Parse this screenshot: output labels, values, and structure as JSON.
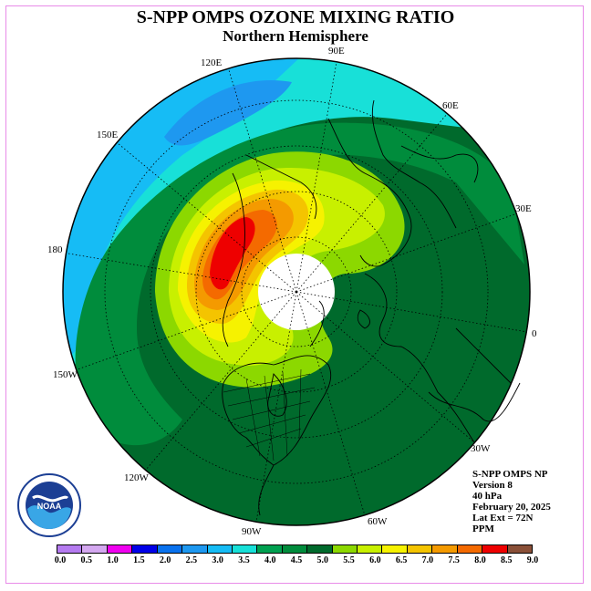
{
  "title": "S-NPP OMPS OZONE MIXING RATIO",
  "subtitle": "Northern Hemisphere",
  "longitude_labels": {
    "lon_90e": "90E",
    "lon_120e": "120E",
    "lon_60e": "60E",
    "lon_150e": "150E",
    "lon_30e": "30E",
    "lon_180": "180",
    "lon_0": "0",
    "lon_150w": "150W",
    "lon_30w": "30W",
    "lon_120w": "120W",
    "lon_60w": "60W",
    "lon_90w": "90W"
  },
  "info": {
    "product": "S-NPP OMPS NP",
    "version": "Version 8",
    "level": "40 hPa",
    "date": "February 20, 2025",
    "lat_ext": "Lat Ext = 72N",
    "units": "PPM"
  },
  "logo_text": "NOAA",
  "colorbar": {
    "colors": [
      "#b57bf0",
      "#d4a8f0",
      "#f000f0",
      "#0000e8",
      "#0a72ee",
      "#1e98f0",
      "#16bcf5",
      "#18e0d8",
      "#00a050",
      "#008c3c",
      "#006a2c",
      "#8cd800",
      "#c8f000",
      "#f6f200",
      "#f4c400",
      "#f49a00",
      "#f46a00",
      "#ee0000",
      "#8a5038"
    ],
    "ticks": [
      "0.0",
      "0.5",
      "1.0",
      "1.5",
      "2.0",
      "2.5",
      "3.0",
      "3.5",
      "4.0",
      "4.5",
      "5.0",
      "5.5",
      "6.0",
      "6.5",
      "7.0",
      "7.5",
      "8.0",
      "8.5",
      "9.0"
    ]
  }
}
